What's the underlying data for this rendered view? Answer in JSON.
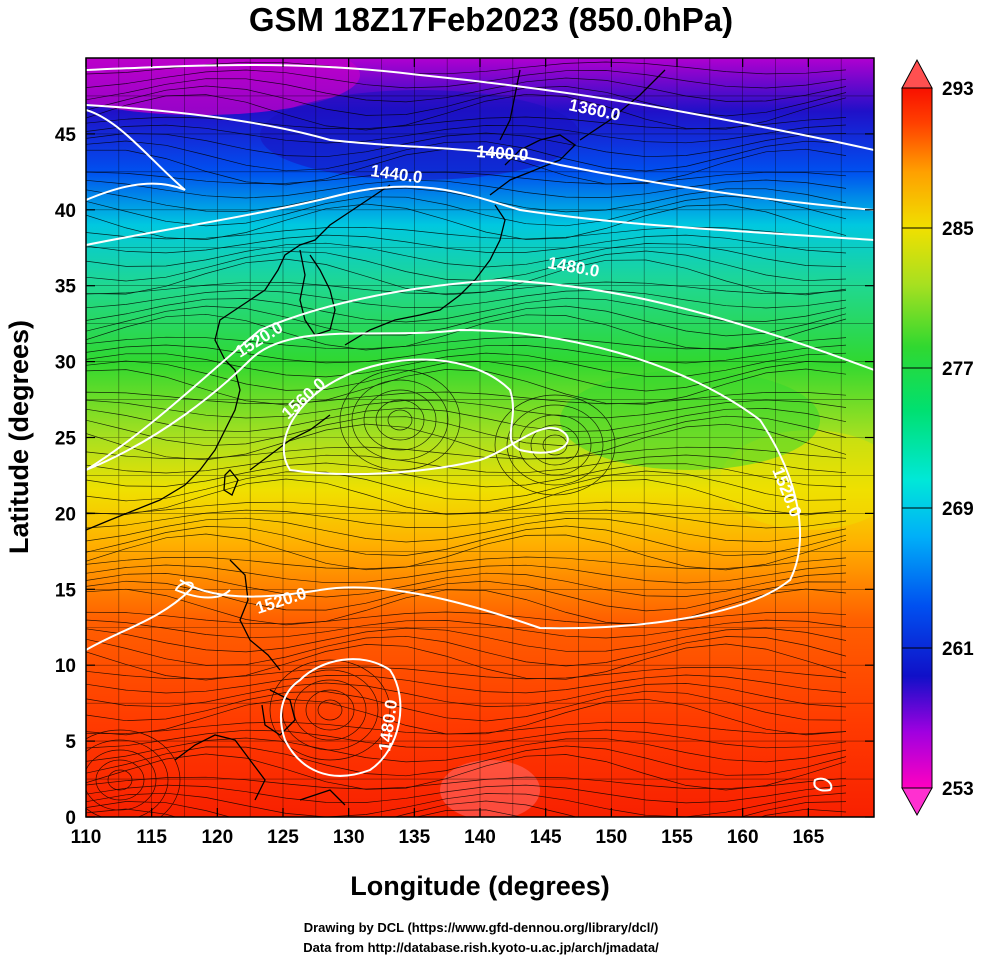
{
  "title": "GSM 18Z17Feb2023 (850.0hPa)",
  "axes": {
    "x_label": "Longitude (degrees)",
    "y_label": "Latitude  (degrees)",
    "x_ticks": [
      "110",
      "115",
      "120",
      "125",
      "130",
      "135",
      "140",
      "145",
      "150",
      "155",
      "160",
      "165"
    ],
    "y_ticks": [
      "0",
      "5",
      "10",
      "15",
      "20",
      "25",
      "30",
      "35",
      "40",
      "45"
    ]
  },
  "colorbar": {
    "ticks": [
      "293",
      "285",
      "277",
      "269",
      "261",
      "253"
    ]
  },
  "contour_labels": [
    "1360.0",
    "1400.0",
    "1440.0",
    "1480.0",
    "1520.0",
    "1560.0",
    "1520.0",
    "1520.0",
    "1480.0"
  ],
  "footer": {
    "line1": "Drawing by DCL (https://www.gfd-dennou.org/library/dcl/)",
    "line2": "Data from http://database.rish.kyoto-u.ac.jp/arch/jmadata/"
  },
  "map_data": {
    "type": "heatmap",
    "variable_range": [
      253,
      293
    ],
    "lon_range": [
      110,
      170
    ],
    "lat_range": [
      0,
      50
    ],
    "colormap_stops": [
      {
        "v": 253,
        "color": "#ff00c0"
      },
      {
        "v": 256,
        "color": "#a000e0"
      },
      {
        "v": 259,
        "color": "#1010c8"
      },
      {
        "v": 263,
        "color": "#0050f0"
      },
      {
        "v": 267,
        "color": "#00b0f8"
      },
      {
        "v": 270,
        "color": "#00e8d8"
      },
      {
        "v": 274,
        "color": "#00e070"
      },
      {
        "v": 278,
        "color": "#30d830"
      },
      {
        "v": 282,
        "color": "#a8e020"
      },
      {
        "v": 285,
        "color": "#f0e000"
      },
      {
        "v": 288,
        "color": "#ffa000"
      },
      {
        "v": 291,
        "color": "#ff4000"
      },
      {
        "v": 293,
        "color": "#f81000"
      }
    ]
  }
}
